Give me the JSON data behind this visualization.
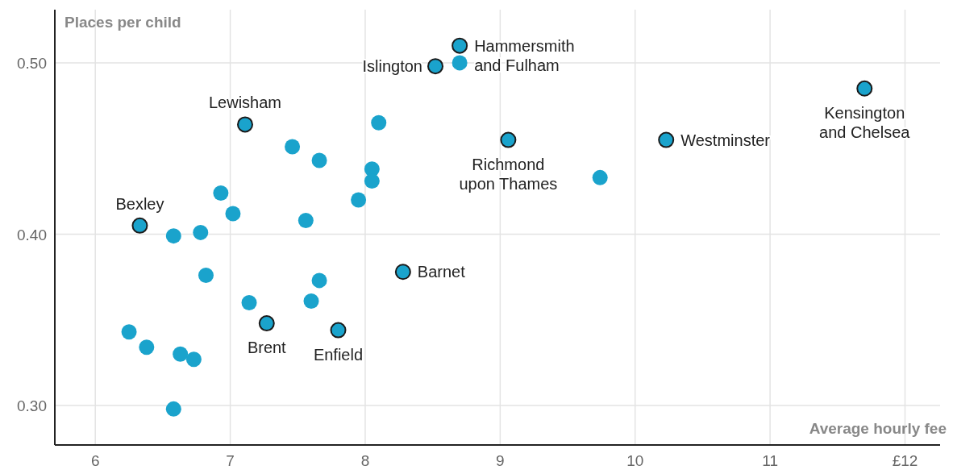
{
  "chart_data": {
    "type": "scatter",
    "xlabel": "Average hourly fee",
    "ylabel": "Places per child",
    "xlim": [
      5.7,
      12.26
    ],
    "ylim": [
      0.277,
      0.531
    ],
    "xticks": [
      6,
      7,
      8,
      9,
      10,
      11,
      {
        "value": 12,
        "label": "£12"
      }
    ],
    "yticks": [
      {
        "value": 0.3,
        "label": "0.30"
      },
      {
        "value": 0.4,
        "label": "0.40"
      },
      {
        "value": 0.5,
        "label": "0.50"
      }
    ],
    "grid": true,
    "marker": "circle",
    "series": [
      {
        "color": "#1aa3cc",
        "x": [
          8.7,
          8.1,
          7.46,
          7.66,
          8.05,
          8.05,
          7.95,
          6.93,
          7.02,
          7.56,
          9.74,
          6.58,
          6.78,
          6.82,
          7.14,
          7.66,
          7.6,
          6.25,
          6.38,
          6.63,
          6.73,
          6.58
        ],
        "values": [
          0.5,
          0.465,
          0.451,
          0.443,
          0.438,
          0.431,
          0.42,
          0.424,
          0.412,
          0.408,
          0.433,
          0.399,
          0.401,
          0.376,
          0.36,
          0.373,
          0.361,
          0.343,
          0.334,
          0.33,
          0.327,
          0.298
        ]
      },
      {
        "color": "#1aa3cc",
        "x": [
          8.7,
          8.52,
          7.11,
          6.33,
          9.06,
          10.23,
          11.7,
          8.28,
          7.27,
          7.8
        ],
        "values": [
          0.51,
          0.498,
          0.464,
          0.405,
          0.455,
          0.455,
          0.485,
          0.378,
          0.348,
          0.344
        ]
      }
    ],
    "annotations": [
      {
        "text": "Hammersmith\nand Fulham",
        "x": 8.7,
        "y": 0.51
      },
      {
        "text": "Islington",
        "x": 8.52,
        "y": 0.498
      },
      {
        "text": "Lewisham",
        "x": 7.11,
        "y": 0.464
      },
      {
        "text": "Bexley",
        "x": 6.33,
        "y": 0.405
      },
      {
        "text": "Richmond\nupon Thames",
        "x": 9.06,
        "y": 0.455
      },
      {
        "text": "Westminster",
        "x": 10.23,
        "y": 0.455
      },
      {
        "text": "Kensington\nand Chelsea",
        "x": 11.7,
        "y": 0.485
      },
      {
        "text": "Barnet",
        "x": 8.28,
        "y": 0.378
      },
      {
        "text": "Brent",
        "x": 7.27,
        "y": 0.348
      },
      {
        "text": "Enfield",
        "x": 7.8,
        "y": 0.344
      }
    ]
  }
}
